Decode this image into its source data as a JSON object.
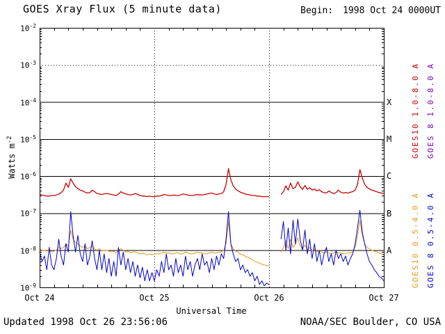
{
  "header": {
    "title": "GOES Xray Flux (5 minute data)",
    "begin_label": "Begin:",
    "begin_value": "1998 Oct 24 0000UT"
  },
  "footer": {
    "updated": "Updated 1998 Oct 26 23:56:06",
    "credit": "NOAA/SEC Boulder, CO USA"
  },
  "axes": {
    "y": {
      "base": "10",
      "tick_exponents": [
        "-2",
        "-3",
        "-4",
        "-5",
        "-6",
        "-7",
        "-8",
        "-9"
      ],
      "solid_line_exponents": [
        -4,
        -5,
        -6,
        -7,
        -8
      ],
      "dotted_line_exponents": [
        -3
      ],
      "title_base": "Watts m",
      "title_exp": "-2"
    },
    "x": {
      "title": "Universal Time",
      "tick_labels": [
        "Oct 24",
        "Oct 25",
        "Oct 26",
        "Oct 27"
      ],
      "tick_hours": [
        0,
        24,
        48,
        72
      ],
      "grid_hours": [
        24,
        48
      ]
    }
  },
  "flare_classes": [
    {
      "label": "X",
      "exponent": -4
    },
    {
      "label": "M",
      "exponent": -5
    },
    {
      "label": "C",
      "exponent": -6
    },
    {
      "label": "B",
      "exponent": -7
    },
    {
      "label": "A",
      "exponent": -8
    }
  ],
  "legend": [
    {
      "label": "GOES10 1.0-8.0 A",
      "color": "#cc0000"
    },
    {
      "label": "GOES 8 1.0-8.0 A",
      "color": "#7d00b0"
    },
    {
      "label": "GOES10 0.5-4.0 A",
      "color": "#e09a18"
    },
    {
      "label": "GOES 8 0.5-4.0 A",
      "color": "#0000cc"
    }
  ],
  "chart_data": {
    "type": "line",
    "title": "GOES Xray Flux (5 minute data)",
    "xlabel": "Universal Time",
    "ylabel": "Watts m-2",
    "y_scale": "log",
    "ylim": [
      1e-09,
      0.01
    ],
    "x_unit": "hours since 1998 Oct 24 0000UT",
    "x_start": 0,
    "x_step": 0.5,
    "x_end": 72,
    "grid": true,
    "legend_position": "right-vertical",
    "data_gap_hours": [
      48.5,
      50
    ],
    "series": [
      {
        "id": "goes10-short",
        "name": "GOES10 0.5-4.0 A",
        "color": "#e09a18",
        "values": [
          1.1e-08,
          1e-08,
          1e-08,
          9.5e-09,
          1e-08,
          9e-09,
          9.5e-09,
          1e-08,
          1.2e-08,
          1.1e-08,
          1.2e-08,
          1.5e-08,
          1.3e-08,
          3.5e-08,
          2e-08,
          1.6e-08,
          1.5e-08,
          1.3e-08,
          1.2e-08,
          1.3e-08,
          1.1e-08,
          1.2e-08,
          1.3e-08,
          1.1e-08,
          1e-08,
          1.1e-08,
          9.5e-09,
          1e-08,
          1e-08,
          9.5e-09,
          9e-09,
          9.5e-09,
          8.5e-09,
          1e-08,
          1.1e-08,
          1e-08,
          9e-09,
          9.5e-09,
          8.5e-09,
          9e-09,
          9e-09,
          8.5e-09,
          8e-09,
          8.5e-09,
          8e-09,
          7.5e-09,
          8e-09,
          7.5e-09,
          8e-09,
          8e-09,
          8e-09,
          8.5e-09,
          9e-09,
          8.5e-09,
          8.5e-09,
          8e-09,
          8e-09,
          8.5e-09,
          8.5e-09,
          8e-09,
          8e-09,
          9e-09,
          8.5e-09,
          8e-09,
          8e-09,
          8.5e-09,
          9e-09,
          8.5e-09,
          8.5e-09,
          8e-09,
          8e-09,
          8.5e-09,
          9e-09,
          8.5e-09,
          8.5e-09,
          9e-09,
          9e-09,
          1e-08,
          1.5e-08,
          6e-08,
          1.5e-08,
          1.1e-08,
          9.5e-09,
          9e-09,
          8e-09,
          7.5e-09,
          7e-09,
          6.5e-09,
          6e-09,
          5.5e-09,
          5e-09,
          4.8e-09,
          4.5e-09,
          4.2e-09,
          4e-09,
          3.9e-09,
          3.8e-09,
          null,
          null,
          null,
          null,
          9e-09,
          1.2e-08,
          1.8e-08,
          1.1e-08,
          2e-08,
          1.2e-08,
          1.4e-08,
          2.2e-08,
          1.3e-08,
          1.1e-08,
          1.4e-08,
          1e-08,
          1.2e-08,
          9.5e-09,
          1.1e-08,
          9e-09,
          1e-08,
          9e-09,
          8.5e-09,
          9e-09,
          8.5e-09,
          8e-09,
          8.5e-09,
          9e-09,
          8.5e-09,
          8.5e-09,
          8e-09,
          8e-09,
          8.5e-09,
          8.5e-09,
          9e-09,
          1.2e-08,
          2.5e-08,
          6.5e-08,
          2.5e-08,
          1.5e-08,
          1.2e-08,
          1.1e-08,
          1e-08,
          9.5e-09,
          9e-09,
          8.5e-09,
          8e-09,
          7.5e-09
        ]
      },
      {
        "id": "goes8-short",
        "name": "GOES 8 0.5-4.0 A",
        "color": "#0000cc",
        "values": [
          9e-09,
          5e-09,
          7e-09,
          3e-09,
          1.2e-08,
          4e-09,
          3e-09,
          6e-09,
          2e-08,
          7e-09,
          4e-09,
          1.5e-08,
          9e-09,
          1.1e-07,
          2.5e-08,
          9e-09,
          2.5e-08,
          8e-09,
          5e-09,
          1.5e-08,
          4e-09,
          7e-09,
          1.8e-08,
          6e-09,
          3e-09,
          1e-08,
          3e-09,
          8e-09,
          2.5e-09,
          6e-09,
          2e-09,
          5e-09,
          2e-09,
          1.2e-08,
          4e-09,
          9e-09,
          3e-09,
          6e-09,
          2.5e-09,
          5e-09,
          2e-09,
          4e-09,
          1.8e-09,
          3.5e-09,
          1.5e-09,
          3e-09,
          1.5e-09,
          2.5e-09,
          1.5e-09,
          3e-09,
          2e-09,
          5e-09,
          2.5e-09,
          8e-09,
          3e-09,
          4e-09,
          2e-09,
          6e-09,
          2.5e-09,
          4e-09,
          2e-09,
          7e-09,
          3e-09,
          5e-09,
          2e-09,
          4e-09,
          6e-09,
          3e-09,
          8e-09,
          4e-09,
          5e-09,
          2.5e-09,
          6e-09,
          3e-09,
          7e-09,
          4e-09,
          8e-09,
          6e-09,
          2e-08,
          1.1e-07,
          1.5e-08,
          8e-09,
          5e-09,
          6e-09,
          3e-09,
          4e-09,
          2.5e-09,
          3e-09,
          2e-09,
          2.5e-09,
          1.5e-09,
          2e-09,
          1.2e-09,
          1.5e-09,
          1.1e-09,
          1.3e-09,
          1.2e-09,
          null,
          null,
          null,
          null,
          2e-08,
          6e-08,
          1e-08,
          4e-08,
          8e-09,
          6.5e-08,
          1.5e-08,
          7e-08,
          2e-08,
          1e-08,
          3.5e-08,
          8e-09,
          2e-08,
          6e-09,
          1.5e-08,
          5e-09,
          1e-08,
          4e-09,
          8e-09,
          1.2e-08,
          5e-09,
          8e-09,
          4e-09,
          1e-08,
          6e-09,
          8e-09,
          5e-09,
          7e-09,
          4e-09,
          6e-09,
          8e-09,
          1.5e-08,
          4e-08,
          1.2e-07,
          3e-08,
          1.5e-08,
          8e-09,
          5e-09,
          4e-09,
          3e-09,
          2.5e-09,
          2e-09,
          1.8e-09,
          1.5e-09
        ]
      },
      {
        "id": "goes10-long",
        "name": "GOES10 1.0-8.0 A",
        "color": "#cc0000",
        "values": [
          3.2e-07,
          3.1e-07,
          3e-07,
          2.9e-07,
          2.9e-07,
          3e-07,
          3e-07,
          3.1e-07,
          3.3e-07,
          3.6e-07,
          4.2e-07,
          6.5e-07,
          5e-07,
          8.5e-07,
          6.5e-07,
          5.2e-07,
          4.6e-07,
          4.2e-07,
          4e-07,
          3.7e-07,
          3.5e-07,
          3.6e-07,
          4.2e-07,
          3.8e-07,
          3.4e-07,
          3.3e-07,
          3.2e-07,
          3.3e-07,
          3.4e-07,
          3.3e-07,
          3.2e-07,
          3.1e-07,
          3e-07,
          3.3e-07,
          3.8e-07,
          3.5e-07,
          3.3e-07,
          3.2e-07,
          3.1e-07,
          3.2e-07,
          3.4e-07,
          3.2e-07,
          3e-07,
          2.9e-07,
          2.9e-07,
          2.8e-07,
          2.9e-07,
          2.8e-07,
          2.8e-07,
          2.9e-07,
          2.9e-07,
          3e-07,
          3.2e-07,
          3.1e-07,
          3e-07,
          3e-07,
          3.1e-07,
          3e-07,
          3e-07,
          3.1e-07,
          3.3e-07,
          3.2e-07,
          3.1e-07,
          3e-07,
          3e-07,
          3.1e-07,
          3.2e-07,
          3.1e-07,
          3.1e-07,
          3.2e-07,
          3.3e-07,
          3.4e-07,
          3.5e-07,
          3.3e-07,
          3.2e-07,
          3.3e-07,
          3.4e-07,
          3.8e-07,
          6e-07,
          1.6e-06,
          8e-07,
          5.5e-07,
          4.5e-07,
          4e-07,
          3.7e-07,
          3.5e-07,
          3.3e-07,
          3.2e-07,
          3.1e-07,
          3e-07,
          3e-07,
          2.9e-07,
          2.9e-07,
          2.8e-07,
          2.8e-07,
          2.8e-07,
          2.8e-07,
          null,
          null,
          null,
          null,
          3.2e-07,
          3.8e-07,
          5.5e-07,
          4.2e-07,
          6.5e-07,
          4.6e-07,
          5e-07,
          7e-07,
          5.2e-07,
          4.4e-07,
          5.6e-07,
          4.4e-07,
          4.9e-07,
          4.2e-07,
          4.5e-07,
          4e-07,
          4.3e-07,
          3.8e-07,
          3.6e-07,
          3.5e-07,
          4e-07,
          3.6e-07,
          3.4e-07,
          3.6e-07,
          4.2e-07,
          3.7e-07,
          3.5e-07,
          3.6e-07,
          3.5e-07,
          3.7e-07,
          3.8e-07,
          4.2e-07,
          6e-07,
          1.5e-06,
          9e-07,
          6e-07,
          5e-07,
          4.5e-07,
          4.2e-07,
          4e-07,
          3.8e-07,
          3.6e-07,
          3.5e-07,
          3.4e-07
        ]
      }
    ]
  }
}
